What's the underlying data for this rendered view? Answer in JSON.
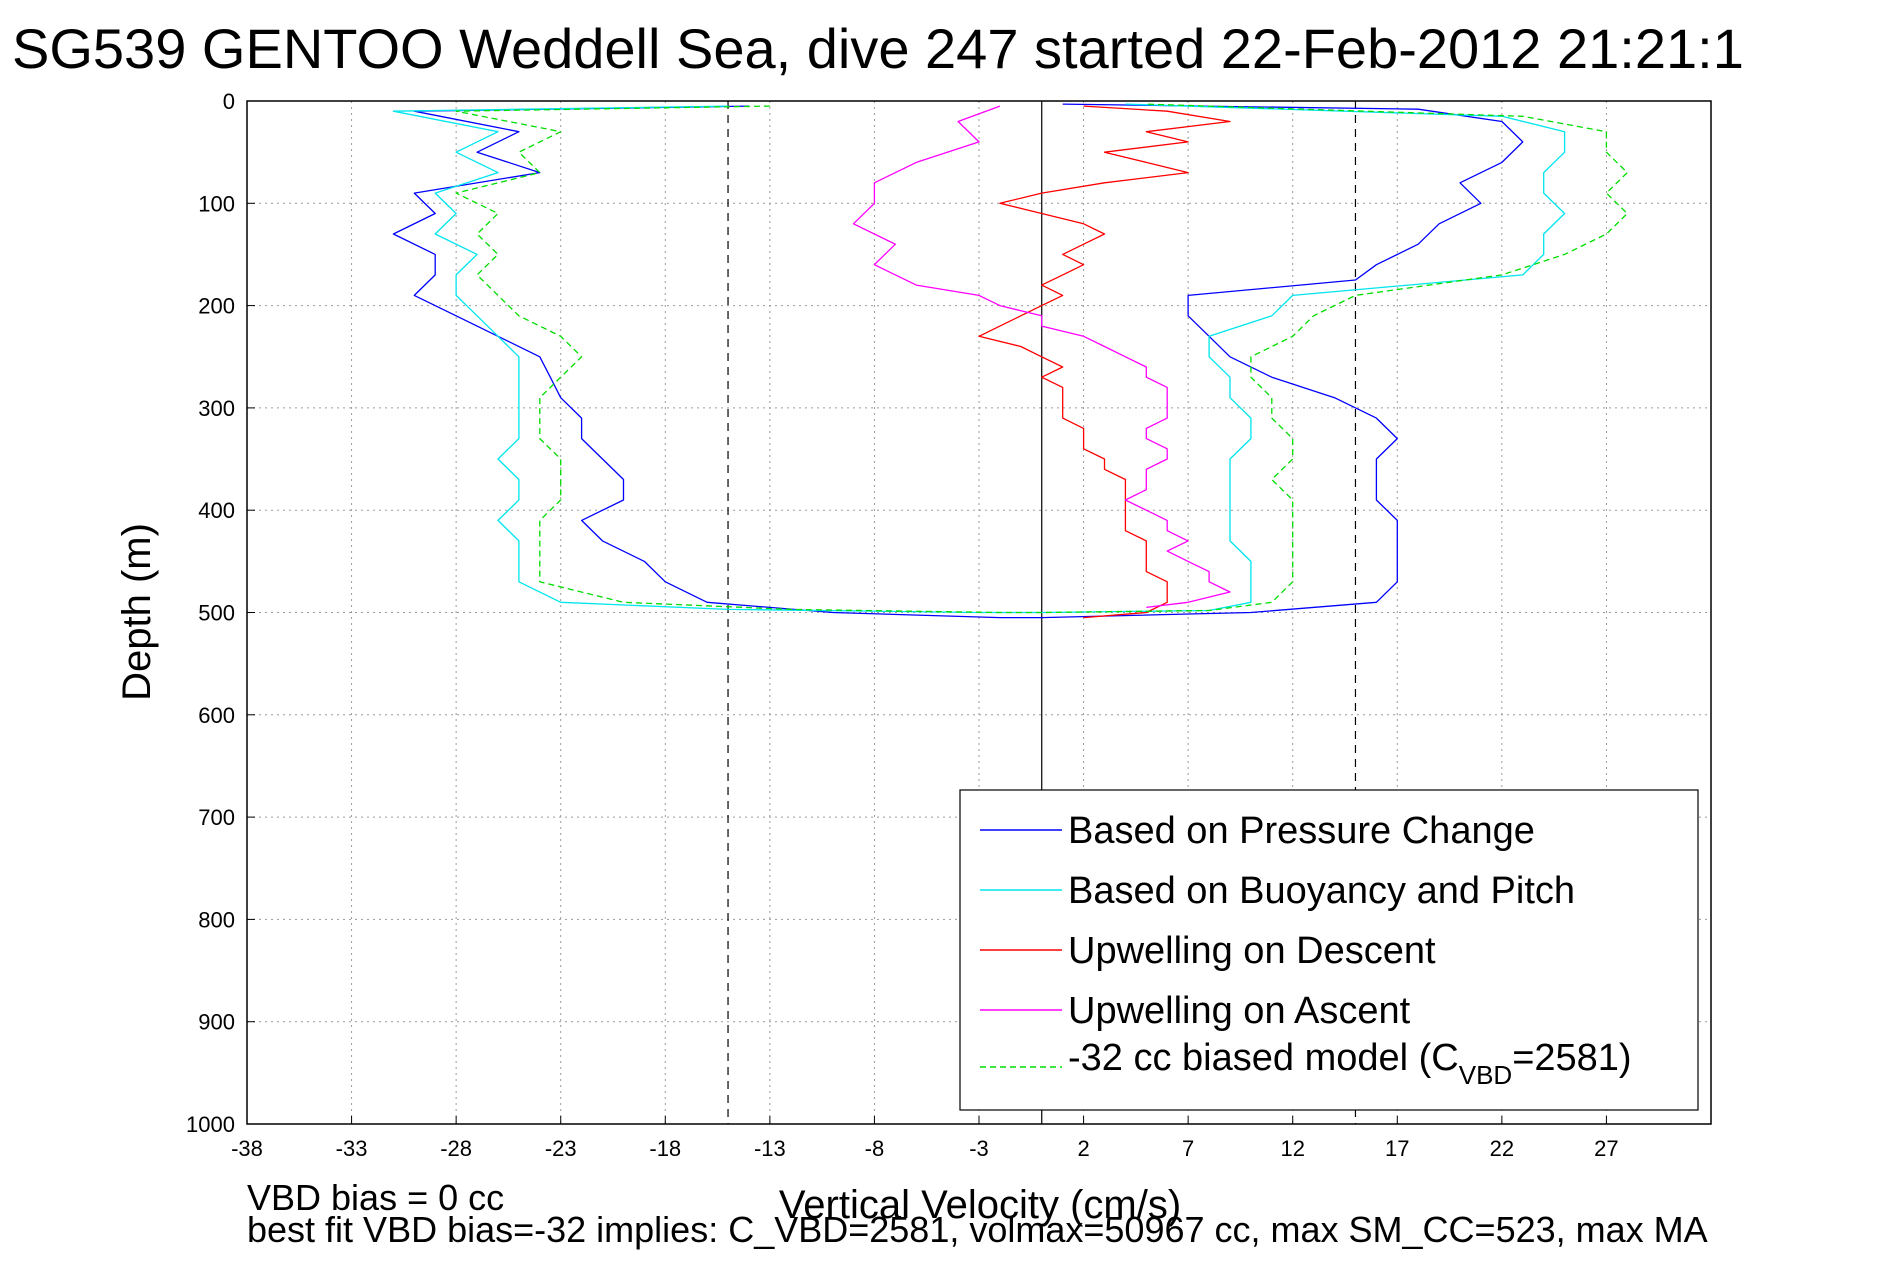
{
  "chart_data": {
    "type": "line",
    "title": "SG539 GENTOO Weddell Sea, dive 247 started 22-Feb-2012 21:21:1",
    "xlabel": "Vertical Velocity (cm/s)",
    "ylabel": "Depth (m)",
    "xlim": [
      -38,
      32
    ],
    "ylim": [
      0,
      1000
    ],
    "y_reversed": true,
    "xticks": [
      -38,
      -33,
      -28,
      -23,
      -18,
      -13,
      -8,
      -3,
      2,
      7,
      12,
      17,
      22,
      27
    ],
    "yticks": [
      0,
      100,
      200,
      300,
      400,
      500,
      600,
      700,
      800,
      900,
      1000
    ],
    "grid": true,
    "legend_position": "lower-right",
    "reference_lines": [
      {
        "x": 0,
        "style": "solid"
      },
      {
        "x": -15,
        "style": "dashed"
      },
      {
        "x": 15,
        "style": "dashed"
      }
    ],
    "series": [
      {
        "name": "Based on Pressure Change",
        "color": "#0000ff",
        "style": "solid",
        "points": [
          [
            -14,
            5
          ],
          [
            -30,
            10
          ],
          [
            -25,
            30
          ],
          [
            -27,
            50
          ],
          [
            -24,
            70
          ],
          [
            -30,
            90
          ],
          [
            -29,
            110
          ],
          [
            -31,
            130
          ],
          [
            -29,
            150
          ],
          [
            -29,
            170
          ],
          [
            -30,
            190
          ],
          [
            -28,
            210
          ],
          [
            -26,
            230
          ],
          [
            -24,
            250
          ],
          [
            -23.5,
            270
          ],
          [
            -23,
            290
          ],
          [
            -22,
            310
          ],
          [
            -22,
            330
          ],
          [
            -21,
            350
          ],
          [
            -20,
            370
          ],
          [
            -20,
            390
          ],
          [
            -22,
            410
          ],
          [
            -21,
            430
          ],
          [
            -19,
            450
          ],
          [
            -18,
            470
          ],
          [
            -16,
            490
          ],
          [
            -10,
            500
          ],
          [
            -2,
            505
          ],
          [
            0,
            505
          ],
          [
            10,
            500
          ],
          [
            16,
            490
          ],
          [
            17,
            470
          ],
          [
            17,
            450
          ],
          [
            17,
            430
          ],
          [
            17,
            410
          ],
          [
            16,
            390
          ],
          [
            16,
            370
          ],
          [
            16,
            350
          ],
          [
            17,
            330
          ],
          [
            16,
            310
          ],
          [
            14,
            290
          ],
          [
            11,
            270
          ],
          [
            9,
            250
          ],
          [
            8,
            230
          ],
          [
            7,
            210
          ],
          [
            7,
            190
          ],
          [
            15,
            175
          ],
          [
            16,
            160
          ],
          [
            18,
            140
          ],
          [
            19,
            120
          ],
          [
            21,
            100
          ],
          [
            20,
            80
          ],
          [
            22,
            60
          ],
          [
            23,
            40
          ],
          [
            22,
            20
          ],
          [
            18,
            8
          ],
          [
            1,
            3
          ]
        ]
      },
      {
        "name": "Based on Buoyancy and Pitch",
        "color": "#00e5ee",
        "style": "solid",
        "points": [
          [
            -15,
            5
          ],
          [
            -31,
            10
          ],
          [
            -26,
            30
          ],
          [
            -28,
            50
          ],
          [
            -26,
            70
          ],
          [
            -29,
            90
          ],
          [
            -28,
            110
          ],
          [
            -29,
            130
          ],
          [
            -27,
            150
          ],
          [
            -28,
            170
          ],
          [
            -28,
            190
          ],
          [
            -27,
            210
          ],
          [
            -26,
            230
          ],
          [
            -25,
            250
          ],
          [
            -25,
            270
          ],
          [
            -25,
            290
          ],
          [
            -25,
            310
          ],
          [
            -25,
            330
          ],
          [
            -26,
            350
          ],
          [
            -25,
            370
          ],
          [
            -25,
            390
          ],
          [
            -26,
            410
          ],
          [
            -25,
            430
          ],
          [
            -25,
            450
          ],
          [
            -25,
            470
          ],
          [
            -23,
            490
          ],
          [
            -15,
            497
          ],
          [
            -3,
            500
          ],
          [
            0,
            500
          ],
          [
            8,
            498
          ],
          [
            10,
            490
          ],
          [
            10,
            470
          ],
          [
            10,
            450
          ],
          [
            9,
            430
          ],
          [
            9,
            410
          ],
          [
            9,
            390
          ],
          [
            9,
            370
          ],
          [
            9,
            350
          ],
          [
            10,
            330
          ],
          [
            10,
            310
          ],
          [
            9,
            290
          ],
          [
            9,
            270
          ],
          [
            8,
            250
          ],
          [
            8,
            230
          ],
          [
            11,
            210
          ],
          [
            12,
            190
          ],
          [
            23,
            170
          ],
          [
            24,
            150
          ],
          [
            24,
            130
          ],
          [
            25,
            110
          ],
          [
            24,
            90
          ],
          [
            24,
            70
          ],
          [
            25,
            50
          ],
          [
            25,
            30
          ],
          [
            22,
            15
          ],
          [
            4,
            3
          ]
        ]
      },
      {
        "name": "Upwelling on Descent",
        "color": "#ff0000",
        "style": "solid",
        "points": [
          [
            2,
            5
          ],
          [
            6,
            10
          ],
          [
            9,
            20
          ],
          [
            5,
            30
          ],
          [
            7,
            40
          ],
          [
            3,
            50
          ],
          [
            5,
            60
          ],
          [
            7,
            70
          ],
          [
            3,
            80
          ],
          [
            0,
            90
          ],
          [
            -2,
            100
          ],
          [
            0,
            110
          ],
          [
            2,
            120
          ],
          [
            3,
            130
          ],
          [
            2,
            140
          ],
          [
            1,
            150
          ],
          [
            2,
            160
          ],
          [
            1,
            170
          ],
          [
            0,
            180
          ],
          [
            1,
            190
          ],
          [
            0,
            200
          ],
          [
            -1,
            210
          ],
          [
            -2,
            220
          ],
          [
            -3,
            230
          ],
          [
            -1,
            240
          ],
          [
            0,
            250
          ],
          [
            1,
            260
          ],
          [
            0,
            270
          ],
          [
            1,
            280
          ],
          [
            1,
            290
          ],
          [
            1,
            300
          ],
          [
            1,
            310
          ],
          [
            2,
            320
          ],
          [
            2,
            330
          ],
          [
            2,
            340
          ],
          [
            3,
            350
          ],
          [
            3,
            360
          ],
          [
            4,
            370
          ],
          [
            4,
            380
          ],
          [
            4,
            390
          ],
          [
            4,
            400
          ],
          [
            4,
            410
          ],
          [
            4,
            420
          ],
          [
            5,
            430
          ],
          [
            5,
            440
          ],
          [
            5,
            450
          ],
          [
            5,
            460
          ],
          [
            6,
            470
          ],
          [
            6,
            480
          ],
          [
            6,
            490
          ],
          [
            5,
            500
          ],
          [
            2,
            505
          ]
        ]
      },
      {
        "name": "Upwelling on Ascent",
        "color": "#ff00ff",
        "style": "solid",
        "points": [
          [
            -2,
            5
          ],
          [
            -4,
            20
          ],
          [
            -3,
            40
          ],
          [
            -6,
            60
          ],
          [
            -8,
            80
          ],
          [
            -8,
            100
          ],
          [
            -9,
            120
          ],
          [
            -7,
            140
          ],
          [
            -8,
            160
          ],
          [
            -6,
            180
          ],
          [
            -3,
            190
          ],
          [
            -2,
            200
          ],
          [
            0,
            210
          ],
          [
            0,
            220
          ],
          [
            2,
            230
          ],
          [
            3,
            240
          ],
          [
            4,
            250
          ],
          [
            5,
            260
          ],
          [
            5,
            270
          ],
          [
            6,
            280
          ],
          [
            6,
            290
          ],
          [
            6,
            300
          ],
          [
            6,
            310
          ],
          [
            5,
            320
          ],
          [
            5,
            330
          ],
          [
            6,
            340
          ],
          [
            6,
            350
          ],
          [
            5,
            360
          ],
          [
            5,
            370
          ],
          [
            5,
            380
          ],
          [
            4,
            390
          ],
          [
            5,
            400
          ],
          [
            6,
            410
          ],
          [
            6,
            420
          ],
          [
            7,
            430
          ],
          [
            6,
            440
          ],
          [
            7,
            450
          ],
          [
            8,
            460
          ],
          [
            8,
            470
          ],
          [
            9,
            480
          ],
          [
            7,
            490
          ],
          [
            5,
            495
          ]
        ]
      },
      {
        "name": "-32 cc biased model (C_VBD=2581)",
        "color": "#00dd00",
        "style": "dashed",
        "points": [
          [
            -13,
            5
          ],
          [
            -28,
            10
          ],
          [
            -23,
            30
          ],
          [
            -25,
            50
          ],
          [
            -24,
            70
          ],
          [
            -28,
            90
          ],
          [
            -26,
            110
          ],
          [
            -27,
            130
          ],
          [
            -26,
            150
          ],
          [
            -27,
            170
          ],
          [
            -26,
            190
          ],
          [
            -25,
            210
          ],
          [
            -23,
            230
          ],
          [
            -22,
            250
          ],
          [
            -23,
            270
          ],
          [
            -24,
            290
          ],
          [
            -24,
            310
          ],
          [
            -24,
            330
          ],
          [
            -23,
            350
          ],
          [
            -23,
            370
          ],
          [
            -23,
            390
          ],
          [
            -24,
            410
          ],
          [
            -24,
            430
          ],
          [
            -24,
            450
          ],
          [
            -24,
            470
          ],
          [
            -20,
            490
          ],
          [
            -12,
            497
          ],
          [
            -2,
            500
          ],
          [
            0,
            500
          ],
          [
            8,
            498
          ],
          [
            11,
            490
          ],
          [
            12,
            470
          ],
          [
            12,
            450
          ],
          [
            12,
            430
          ],
          [
            12,
            410
          ],
          [
            12,
            390
          ],
          [
            11,
            370
          ],
          [
            12,
            350
          ],
          [
            12,
            330
          ],
          [
            11,
            310
          ],
          [
            11,
            290
          ],
          [
            10,
            270
          ],
          [
            10,
            250
          ],
          [
            12,
            230
          ],
          [
            13,
            210
          ],
          [
            15,
            190
          ],
          [
            22,
            170
          ],
          [
            25,
            150
          ],
          [
            27,
            130
          ],
          [
            28,
            110
          ],
          [
            27,
            90
          ],
          [
            28,
            70
          ],
          [
            27,
            50
          ],
          [
            27,
            30
          ],
          [
            23,
            15
          ],
          [
            5,
            3
          ]
        ]
      }
    ]
  },
  "legend": {
    "entries": [
      {
        "label": "Based on Pressure Change",
        "color": "#0000ff",
        "dash": false
      },
      {
        "label": "Based on Buoyancy and Pitch",
        "color": "#00e5ee",
        "dash": false
      },
      {
        "label": "Upwelling on Descent",
        "color": "#ff0000",
        "dash": false
      },
      {
        "label": "Upwelling on Ascent",
        "color": "#ff00ff",
        "dash": false
      }
    ],
    "model_entry": {
      "prefix": "-32 cc biased model (C",
      "subscript": "VBD",
      "suffix": "=2581)",
      "color": "#00dd00"
    }
  },
  "footer": {
    "line1": "VBD bias = 0 cc",
    "line2": "best fit VBD bias=-32 implies: C_VBD=2581, volmax=50967 cc, max SM_CC=523, max MA"
  }
}
